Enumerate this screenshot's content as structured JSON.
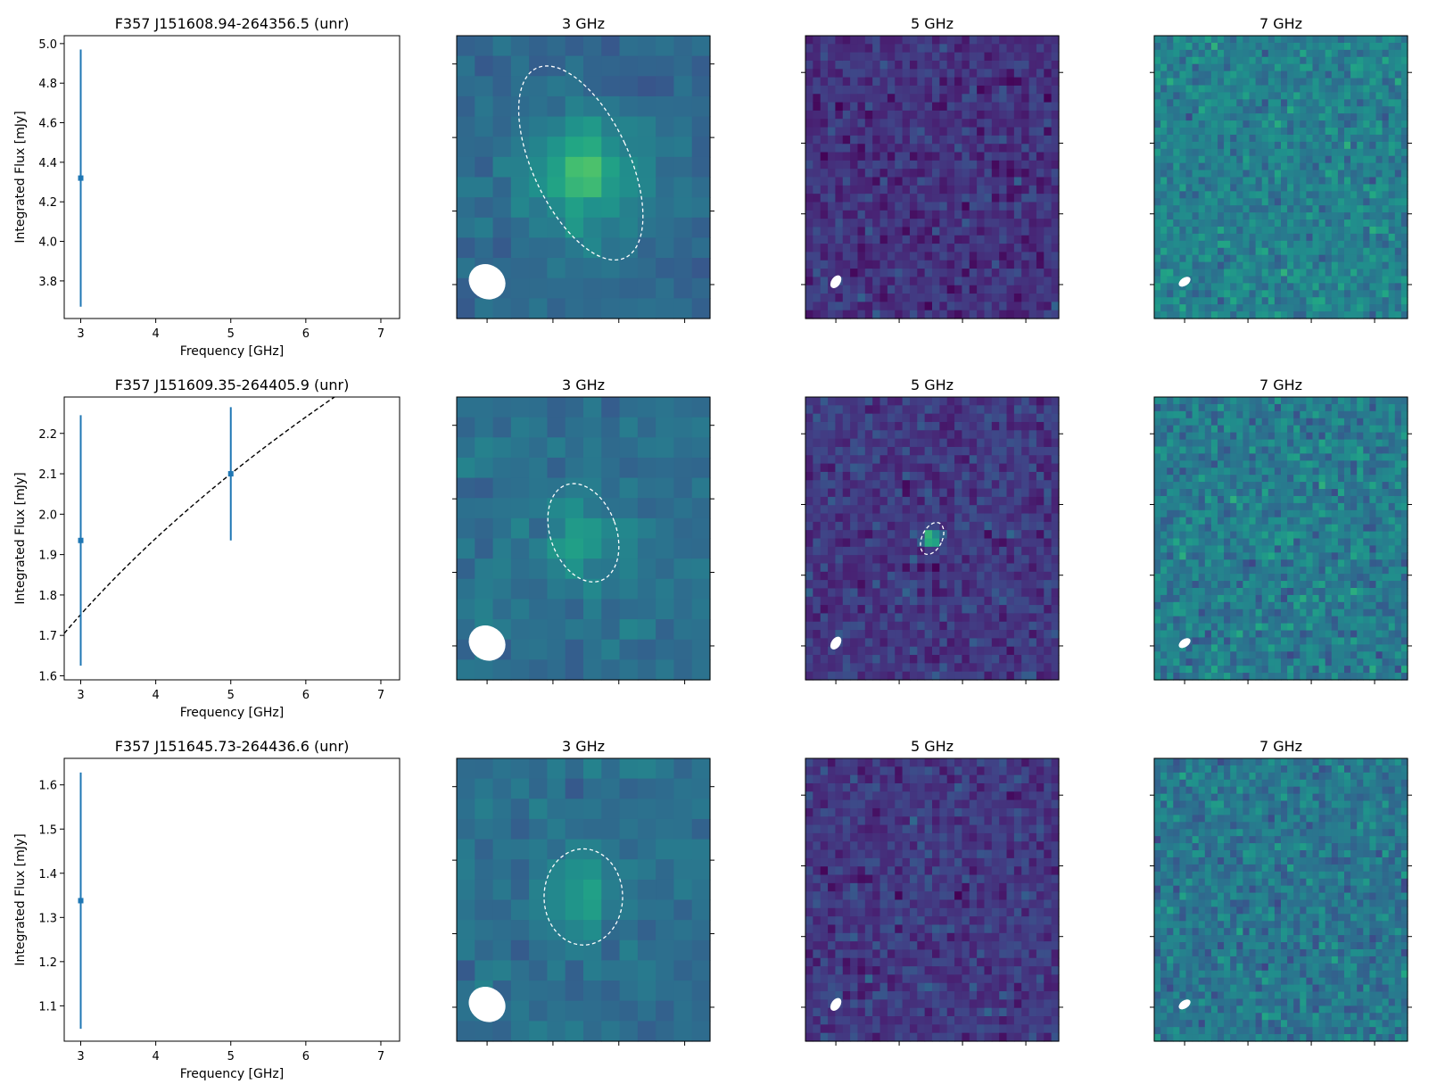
{
  "chart_data": [
    {
      "type": "scatter",
      "title": "F357 J151608.94-264356.5 (unr)",
      "xlabel": "Frequency [GHz]",
      "ylabel": "Integrated Flux [mJy]",
      "xlim": [
        2.78,
        7.25
      ],
      "ylim": [
        3.61,
        5.04
      ],
      "xticks": [
        "3",
        "4",
        "5",
        "6",
        "7"
      ],
      "yticks": [
        "3.8",
        "4.0",
        "4.2",
        "4.4",
        "4.6",
        "4.8",
        "5.0"
      ],
      "points": [
        {
          "x": 3,
          "y": 4.32,
          "yerr": 0.65
        }
      ],
      "fit": null,
      "color": "#1f77b4"
    },
    {
      "type": "scatter",
      "title": "F357 J151609.35-264405.9 (unr)",
      "xlabel": "Frequency [GHz]",
      "ylabel": "Integrated Flux [mJy]",
      "xlim": [
        2.78,
        7.25
      ],
      "ylim": [
        1.59,
        2.29
      ],
      "xticks": [
        "3",
        "4",
        "5",
        "6",
        "7"
      ],
      "yticks": [
        "1.6",
        "1.7",
        "1.8",
        "1.9",
        "2.0",
        "2.1",
        "2.2"
      ],
      "points": [
        {
          "x": 3,
          "y": 1.935,
          "yerr": 0.31
        },
        {
          "x": 5,
          "y": 2.1,
          "yerr": 0.165
        }
      ],
      "fit": {
        "x0": 5,
        "y0": 2.1,
        "alpha": 0.355
      },
      "color": "#1f77b4"
    },
    {
      "type": "scatter",
      "title": "F357 J151645.73-264436.6 (unr)",
      "xlabel": "Frequency [GHz]",
      "ylabel": "Integrated Flux [mJy]",
      "xlim": [
        2.78,
        7.25
      ],
      "ylim": [
        1.02,
        1.66
      ],
      "xticks": [
        "3",
        "4",
        "5",
        "6",
        "7"
      ],
      "yticks": [
        "1.1",
        "1.2",
        "1.3",
        "1.4",
        "1.5",
        "1.6"
      ],
      "points": [
        {
          "x": 3,
          "y": 1.338,
          "yerr": 0.29
        }
      ],
      "fit": null,
      "color": "#1f77b4"
    }
  ],
  "cutouts": [
    [
      {
        "title": "3 GHz",
        "grid": 14,
        "base": 0.34,
        "noise": 0.07,
        "peak": 0.33,
        "blob_sigma": 2.0,
        "colormap": "viridis"
      },
      {
        "title": "5 GHz",
        "grid": 34,
        "base": 0.15,
        "noise": 0.11,
        "peak": 0.0,
        "blob_sigma": 1.0,
        "colormap": "viridis"
      },
      {
        "title": "7 GHz",
        "grid": 40,
        "base": 0.44,
        "noise": 0.14,
        "peak": 0.0,
        "blob_sigma": 1.0,
        "colormap": "viridis"
      }
    ],
    [
      {
        "title": "3 GHz",
        "grid": 14,
        "base": 0.37,
        "noise": 0.07,
        "peak": 0.22,
        "blob_sigma": 1.3,
        "colormap": "viridis"
      },
      {
        "title": "5 GHz",
        "grid": 34,
        "base": 0.17,
        "noise": 0.11,
        "peak": 0.7,
        "blob_sigma": 0.7,
        "colormap": "viridis"
      },
      {
        "title": "7 GHz",
        "grid": 40,
        "base": 0.42,
        "noise": 0.15,
        "peak": 0.55,
        "blob_sigma": 0.4,
        "colormap": "viridis"
      }
    ],
    [
      {
        "title": "3 GHz",
        "grid": 14,
        "base": 0.37,
        "noise": 0.07,
        "peak": 0.18,
        "blob_sigma": 1.3,
        "colormap": "viridis"
      },
      {
        "title": "5 GHz",
        "grid": 34,
        "base": 0.17,
        "noise": 0.11,
        "peak": 0.0,
        "blob_sigma": 1.0,
        "colormap": "viridis"
      },
      {
        "title": "7 GHz",
        "grid": 40,
        "base": 0.4,
        "noise": 0.14,
        "peak": 0.0,
        "blob_sigma": 1.0,
        "colormap": "viridis"
      }
    ]
  ]
}
